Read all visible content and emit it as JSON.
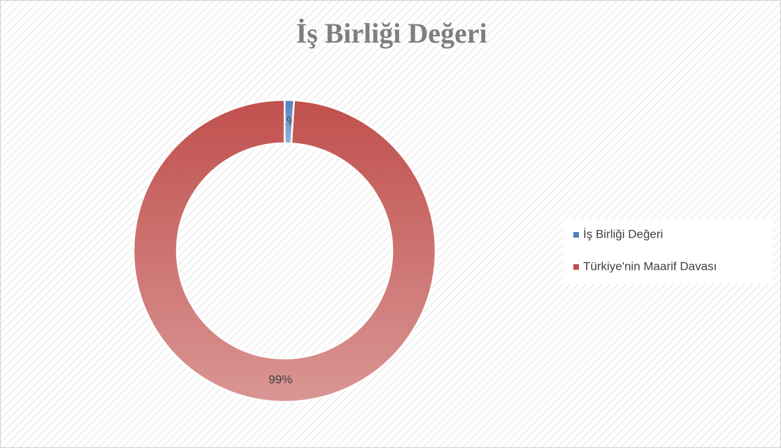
{
  "chart_data": {
    "type": "donut",
    "title": "İş Birliği Değeri",
    "categories": [
      "İş Birliği Değeri",
      "Türkiye'nin Maarif Davası"
    ],
    "values": [
      1,
      99
    ],
    "value_labels": [
      "1%",
      "99%"
    ],
    "colors": [
      "#4f81bd",
      "#c0504d"
    ],
    "legend": "right"
  }
}
